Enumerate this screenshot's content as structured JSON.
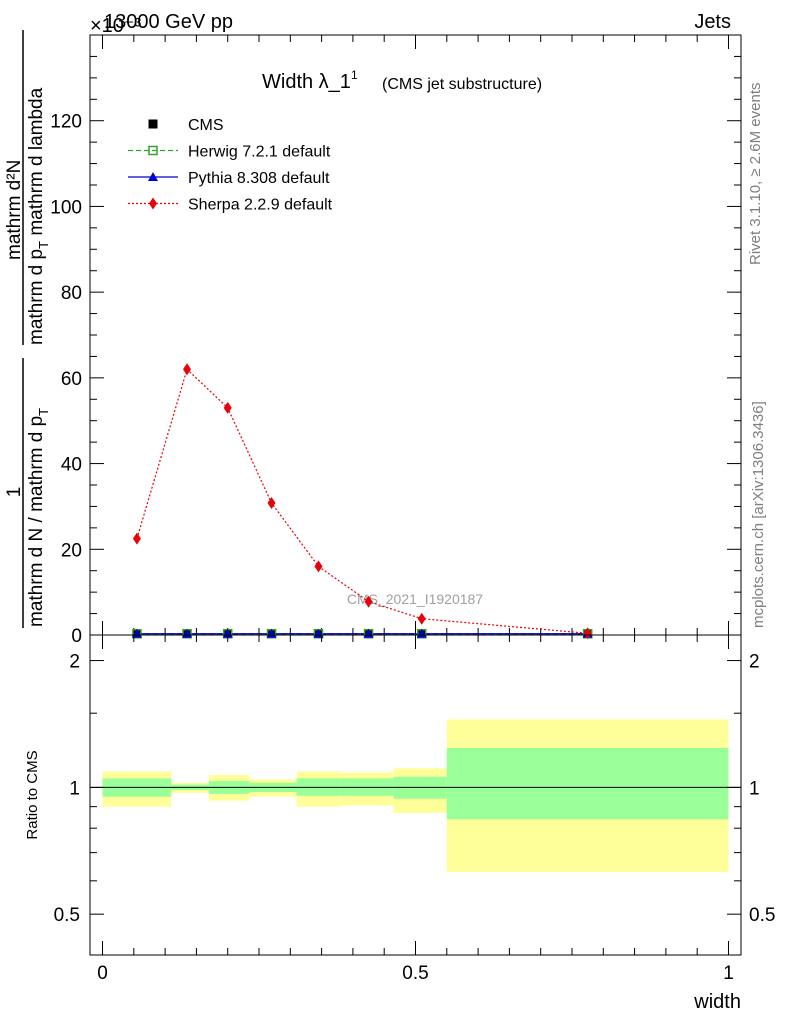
{
  "header": {
    "left_label": "13000 GeV pp",
    "right_label": "Jets",
    "exponent_label": "×10⁻³"
  },
  "side_text": {
    "rivet": "Rivet 3.1.10, ≥ 2.6M events",
    "mcplots": "mcplots.cern.ch [arXiv:1306.3436]"
  },
  "watermark": "CMS_2021_I1920187",
  "chart_data": [
    {
      "type": "line",
      "title": "Width λ_1",
      "title_superscript": "1",
      "subtitle": "(CMS jet substructure)",
      "xlabel": "width",
      "ylabel_fraction": {
        "numerator": "1",
        "denominator": "mathrm d N / mathrm d p",
        "denominator_sub": "T",
        "right_top": "mathrm d²N",
        "right_bottom": "mathrm d p",
        "right_bottom_sub": "T",
        "right_bottom_tail": " mathrm d lambda"
      },
      "xlim": [
        -0.02,
        1.02
      ],
      "ylim": [
        0,
        140
      ],
      "y_scale_exponent": -3,
      "yticks": [
        0,
        20,
        40,
        60,
        80,
        100,
        120
      ],
      "ytick_labels": [
        "0",
        "20",
        "40",
        "60",
        "80",
        "100",
        "120"
      ],
      "legend_position": "top-left",
      "legend": [
        {
          "label": "CMS",
          "color": "#000000",
          "marker": "filled-square",
          "line": "none"
        },
        {
          "label": "Herwig 7.2.1 default",
          "color": "#33a02c",
          "marker": "open-square",
          "line": "dashed"
        },
        {
          "label": "Pythia 8.308 default",
          "color": "#0000cc",
          "marker": "triangle",
          "line": "solid"
        },
        {
          "label": "Sherpa 2.2.9 default",
          "color": "#e8000b",
          "marker": "diamond",
          "line": "dotted"
        }
      ],
      "series": [
        {
          "name": "CMS",
          "x": [
            0.055,
            0.135,
            0.2,
            0.27,
            0.345,
            0.425,
            0.51,
            0.775
          ],
          "values": [
            0.3,
            0.3,
            0.3,
            0.3,
            0.3,
            0.3,
            0.3,
            0.3
          ]
        },
        {
          "name": "Herwig 7.2.1 default",
          "x": [
            0.055,
            0.135,
            0.2,
            0.27,
            0.345,
            0.425,
            0.51,
            0.775
          ],
          "values": [
            0.3,
            0.3,
            0.3,
            0.3,
            0.3,
            0.3,
            0.3,
            0.3
          ]
        },
        {
          "name": "Pythia 8.308 default",
          "x": [
            0.055,
            0.135,
            0.2,
            0.27,
            0.345,
            0.425,
            0.51,
            0.775
          ],
          "values": [
            0.3,
            0.3,
            0.3,
            0.3,
            0.3,
            0.3,
            0.3,
            0.3
          ]
        },
        {
          "name": "Sherpa 2.2.9 default",
          "x": [
            0.055,
            0.135,
            0.2,
            0.27,
            0.345,
            0.425,
            0.51,
            0.775
          ],
          "values": [
            22.5,
            62,
            53,
            30.8,
            16,
            7.8,
            3.8,
            0.4
          ]
        }
      ]
    },
    {
      "type": "area",
      "ylabel": "Ratio to CMS",
      "xlabel": "width",
      "xlim": [
        -0.02,
        1.02
      ],
      "ylim": [
        0.4,
        2.3
      ],
      "yticks": [
        0.5,
        1,
        2
      ],
      "ytick_labels": [
        "0.5",
        "1",
        "2"
      ],
      "xticks": [
        0,
        0.5,
        1
      ],
      "xtick_labels": [
        "0",
        "0.5",
        "1"
      ],
      "reference_line": 1,
      "bins": [
        {
          "x_low": 0.0,
          "x_high": 0.11,
          "inner_low": 0.95,
          "inner_high": 1.05,
          "outer_low": 0.9,
          "outer_high": 1.09
        },
        {
          "x_low": 0.11,
          "x_high": 0.17,
          "inner_low": 0.985,
          "inner_high": 1.015,
          "outer_low": 0.97,
          "outer_high": 1.025
        },
        {
          "x_low": 0.17,
          "x_high": 0.235,
          "inner_low": 0.965,
          "inner_high": 1.035,
          "outer_low": 0.93,
          "outer_high": 1.07
        },
        {
          "x_low": 0.235,
          "x_high": 0.31,
          "inner_low": 0.975,
          "inner_high": 1.025,
          "outer_low": 0.95,
          "outer_high": 1.045
        },
        {
          "x_low": 0.31,
          "x_high": 0.38,
          "inner_low": 0.955,
          "inner_high": 1.05,
          "outer_low": 0.9,
          "outer_high": 1.09
        },
        {
          "x_low": 0.38,
          "x_high": 0.465,
          "inner_low": 0.955,
          "inner_high": 1.05,
          "outer_low": 0.905,
          "outer_high": 1.085
        },
        {
          "x_low": 0.465,
          "x_high": 0.55,
          "inner_low": 0.94,
          "inner_high": 1.06,
          "outer_low": 0.87,
          "outer_high": 1.11
        },
        {
          "x_low": 0.55,
          "x_high": 1.0,
          "inner_low": 0.84,
          "inner_high": 1.24,
          "outer_low": 0.63,
          "outer_high": 1.45
        }
      ]
    }
  ],
  "colors": {
    "band_inner": "#99ff99",
    "band_outer": "#ffff99",
    "side_text": "#7f7f7f",
    "watermark": "#a0a0a0"
  }
}
